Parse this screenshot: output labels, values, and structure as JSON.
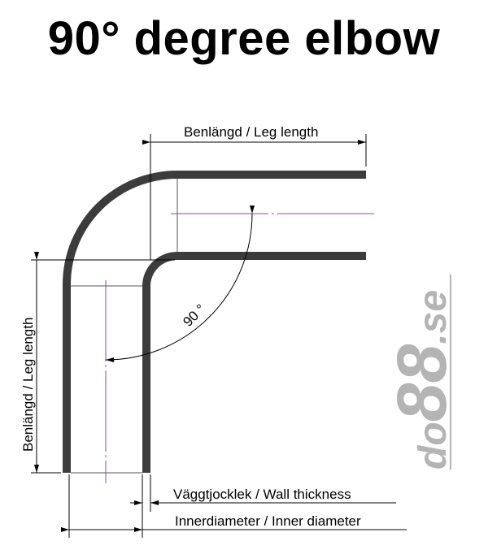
{
  "title": "90° degree elbow",
  "labels": {
    "leg_length_top": "Benlängd / Leg length",
    "leg_length_left": "Benlängd / Leg length",
    "angle": "90 °",
    "wall_thickness": "Väggtjocklek / Wall thickness",
    "inner_diameter": "Innerdiameter / Inner diameter"
  },
  "logo": {
    "text": "do88.se",
    "color": "#b4b4b4"
  },
  "colors": {
    "tube": "#3c3c3c",
    "centerline": "#a040a0",
    "dimension": "#000000"
  }
}
